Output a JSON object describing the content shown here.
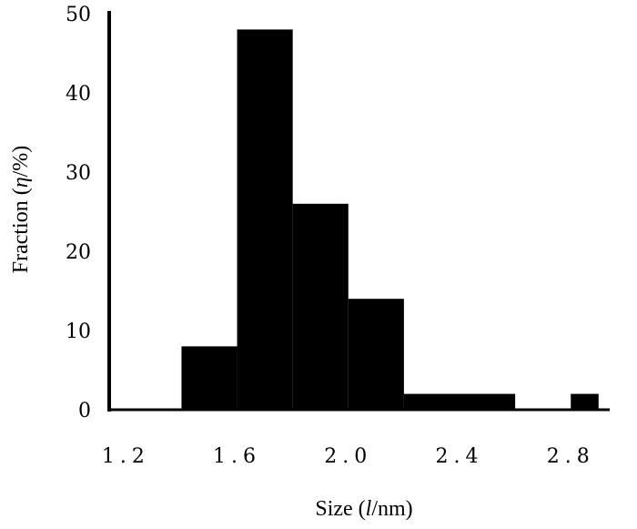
{
  "chart_data": {
    "type": "bar",
    "title": "",
    "xlabel": "Size (l/nm)",
    "xlabel_parts": {
      "before": "Size (",
      "var": "l",
      "after": "/nm)"
    },
    "ylabel": "Fraction (η/%)",
    "ylabel_parts": {
      "before": "Fraction (",
      "var": "η",
      "after": "/%)"
    },
    "xlim": [
      1.14,
      2.94
    ],
    "ylim": [
      0,
      50
    ],
    "x_ticks": [
      1.2,
      1.6,
      2.0,
      2.4,
      2.8
    ],
    "x_tick_labels": [
      "1.2",
      "1.6",
      "2.0",
      "2.4",
      "2.8"
    ],
    "y_ticks": [
      0,
      10,
      20,
      30,
      40,
      50
    ],
    "y_tick_labels": [
      "0",
      "10",
      "20",
      "30",
      "40",
      "50"
    ],
    "bins": [
      {
        "x0": 1.4,
        "x1": 1.6,
        "value": 8
      },
      {
        "x0": 1.6,
        "x1": 1.8,
        "value": 48
      },
      {
        "x0": 1.8,
        "x1": 2.0,
        "value": 26
      },
      {
        "x0": 2.0,
        "x1": 2.2,
        "value": 14
      },
      {
        "x0": 2.2,
        "x1": 2.4,
        "value": 2
      },
      {
        "x0": 2.4,
        "x1": 2.6,
        "value": 2
      },
      {
        "x0": 2.6,
        "x1": 2.8,
        "value": 0
      },
      {
        "x0": 2.8,
        "x1": 2.9,
        "value": 2
      }
    ],
    "bar_color": "#000000",
    "grid": false,
    "legend": "none"
  }
}
